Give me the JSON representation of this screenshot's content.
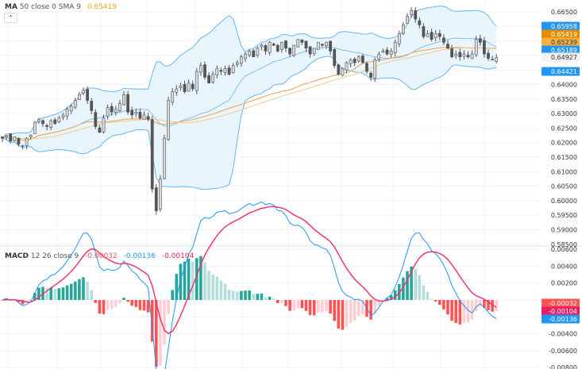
{
  "price_legend": {
    "name": "MA",
    "params": "50 close 0 SMA 9",
    "value": "0.65419",
    "color": "#f5a623"
  },
  "collapse_icon": "chevron-up-icon",
  "macd_legend": {
    "name": "MACD",
    "params": "12 26 close 9",
    "hist": "-0.00032",
    "macd": "-0.00136",
    "signal": "-0.00104"
  },
  "price_tags": [
    {
      "value": "0.65958",
      "color": "#2196f3"
    },
    {
      "value": "0.65419",
      "color": "#e68a00"
    },
    {
      "value": "0.65239",
      "color": "#f5b041"
    },
    {
      "value": "0.65189",
      "color": "#2196f3"
    },
    {
      "value": "0.64927",
      "color": "#f2f2f2"
    },
    {
      "value": "0.64421",
      "color": "#2196f3"
    }
  ],
  "macd_tags": [
    {
      "value": "-0.00032",
      "color": "#ff5252"
    },
    {
      "value": "-0.00104",
      "color": "#e91e63"
    },
    {
      "value": "-0.00136",
      "color": "#2196f3"
    }
  ],
  "chart_data": [
    {
      "type": "candlestick",
      "ylim": [
        0.583,
        0.668
      ],
      "y_ticks": [
        "0.66500",
        "0.66000",
        "0.65500",
        "0.65000",
        "0.64500",
        "0.64000",
        "0.63500",
        "0.63000",
        "0.62500",
        "0.62000",
        "0.61500",
        "0.61000",
        "0.60500",
        "0.60000",
        "0.59500",
        "0.59000",
        "0.58500"
      ],
      "grid": true,
      "overlays": [
        "Bollinger Bands 20 2",
        "MA 50",
        "SMA 9"
      ],
      "colors": {
        "up": "#d9d9d9",
        "down": "#555555",
        "bands": "#64b5f6",
        "band_fill": "#e3f2fd",
        "ma50": "#f0a04b",
        "sma9": "#f3c98b"
      },
      "close": [
        0.6215,
        0.6225,
        0.6205,
        0.622,
        0.6195,
        0.619,
        0.6215,
        0.6225,
        0.627,
        0.628,
        0.6265,
        0.6255,
        0.6275,
        0.6265,
        0.6285,
        0.6295,
        0.6315,
        0.6325,
        0.6345,
        0.6365,
        0.638,
        0.6345,
        0.631,
        0.6255,
        0.6235,
        0.6285,
        0.632,
        0.6305,
        0.6315,
        0.6335,
        0.6365,
        0.6305,
        0.6295,
        0.6305,
        0.6285,
        0.6295,
        0.628,
        0.604,
        0.5965,
        0.6075,
        0.6215,
        0.6345,
        0.6375,
        0.6385,
        0.6395,
        0.6375,
        0.6405,
        0.6385,
        0.6445,
        0.6465,
        0.6425,
        0.6405,
        0.6435,
        0.6455,
        0.6445,
        0.6455,
        0.6435,
        0.6465,
        0.6475,
        0.6495,
        0.6505,
        0.6515,
        0.6495,
        0.6525,
        0.6535,
        0.6515,
        0.6545,
        0.6535,
        0.6515,
        0.6545,
        0.6525,
        0.6505,
        0.6535,
        0.6555,
        0.6545,
        0.6525,
        0.6505,
        0.6525,
        0.6545,
        0.6535,
        0.6545,
        0.6515,
        0.6465,
        0.6435,
        0.6455,
        0.6475,
        0.6485,
        0.6475,
        0.6495,
        0.6475,
        0.6445,
        0.6425,
        0.6485,
        0.6505,
        0.6515,
        0.6505,
        0.6515,
        0.6545,
        0.6575,
        0.6605,
        0.6635,
        0.6655,
        0.6625,
        0.6605,
        0.6565,
        0.6575,
        0.6555,
        0.6575,
        0.6565,
        0.6545,
        0.6525,
        0.6495,
        0.6505,
        0.6495,
        0.6505,
        0.6495,
        0.6505,
        0.6555,
        0.6545,
        0.6505,
        0.649,
        0.6485,
        0.64927
      ]
    },
    {
      "type": "macd",
      "ylim": [
        -0.0081,
        0.0061
      ],
      "y_ticks": [
        "0.00600",
        "0.00400",
        "0.00200",
        "0.00000",
        "-0.00200",
        "-0.00400",
        "-0.00600",
        "-0.00800"
      ],
      "colors": {
        "macd": "#2196f3",
        "signal": "#f23674",
        "hist_up_strong": "#26a69a",
        "hist_up_weak": "#b2dfdb",
        "hist_down_strong": "#ff5252",
        "hist_down_weak": "#ffcdd2"
      }
    }
  ]
}
